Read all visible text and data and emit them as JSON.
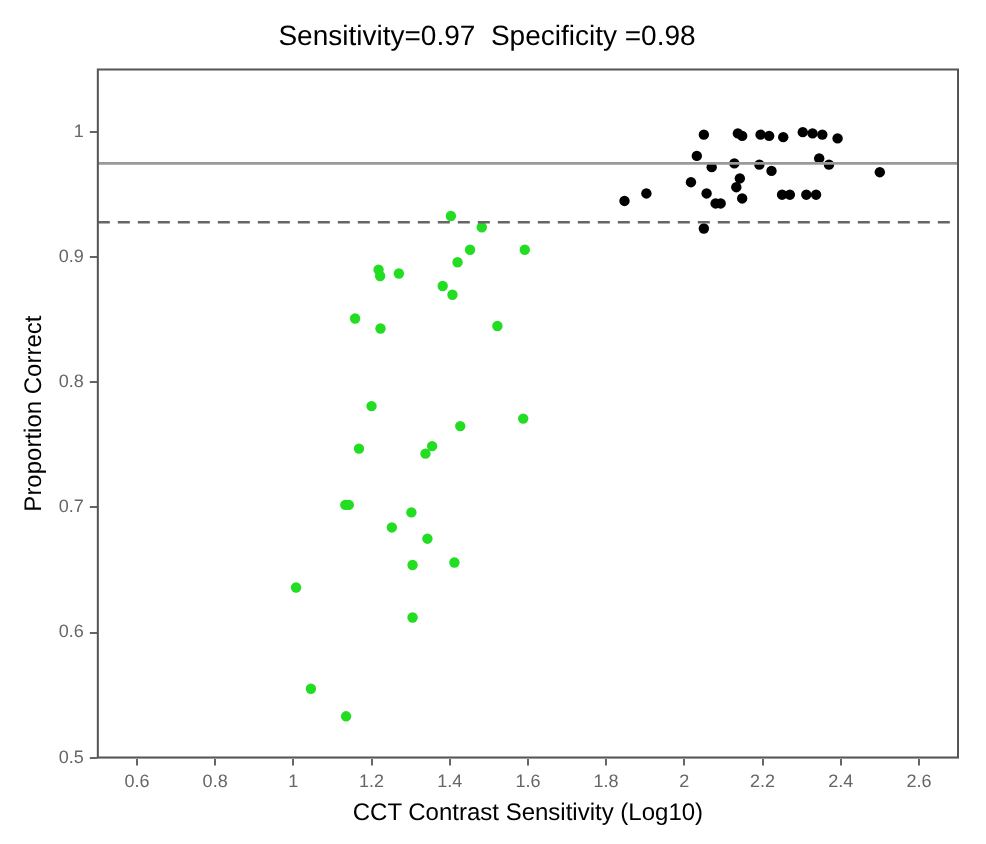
{
  "chart_data": {
    "type": "scatter",
    "title": "Sensitivity=0.97  Specificity =0.98",
    "xlabel": "CCT Contrast Sensitivity (Log10)",
    "ylabel": "Proportion Correct",
    "xlim": [
      0.5,
      2.7
    ],
    "xticks": [
      0.6,
      0.8,
      1,
      1.2,
      1.4,
      1.6,
      1.8,
      2,
      2.2,
      2.4,
      2.6
    ],
    "ylim": [
      0.5,
      1.05
    ],
    "yticks": [
      0.5,
      0.6,
      0.7,
      0.8,
      0.9,
      1
    ],
    "grid": false,
    "legend": false,
    "marker": "circle",
    "series": [
      {
        "color": "#22dd22",
        "x": [
          1.403,
          1.482,
          1.452,
          1.42,
          1.218,
          1.222,
          1.27,
          1.382,
          1.407,
          1.158,
          1.223,
          1.2,
          1.168,
          1.427,
          1.338,
          1.355,
          1.133,
          1.142,
          1.302,
          1.252,
          1.343,
          1.305,
          1.412,
          1.305,
          1.007,
          1.045,
          1.135,
          1.592,
          1.522,
          1.588
        ],
        "values": [
          0.933,
          0.924,
          0.906,
          0.896,
          0.89,
          0.885,
          0.887,
          0.877,
          0.87,
          0.851,
          0.843,
          0.781,
          0.747,
          0.765,
          0.743,
          0.749,
          0.702,
          0.702,
          0.696,
          0.684,
          0.675,
          0.654,
          0.656,
          0.612,
          0.636,
          0.555,
          0.533,
          0.906,
          0.845,
          0.771
        ]
      },
      {
        "color": "#000000",
        "x": [
          2.05,
          2.137,
          2.148,
          2.195,
          2.217,
          2.253,
          2.303,
          2.328,
          2.353,
          2.392,
          2.032,
          2.07,
          2.128,
          2.192,
          2.223,
          2.345,
          2.37,
          2.5,
          2.017,
          2.142,
          2.133,
          2.057,
          2.08,
          2.093,
          2.148,
          2.25,
          2.27,
          2.312,
          2.337,
          1.903,
          1.847,
          2.05
        ],
        "values": [
          0.998,
          0.999,
          0.997,
          0.998,
          0.997,
          0.996,
          1.0,
          0.999,
          0.998,
          0.995,
          0.981,
          0.972,
          0.975,
          0.974,
          0.969,
          0.979,
          0.974,
          0.968,
          0.96,
          0.963,
          0.956,
          0.951,
          0.943,
          0.943,
          0.947,
          0.95,
          0.95,
          0.95,
          0.95,
          0.951,
          0.945,
          0.923
        ]
      }
    ],
    "ref_lines": [
      {
        "axis": "y",
        "value": 0.975,
        "color": "#999999",
        "line_style": "solid"
      },
      {
        "axis": "y",
        "value": 0.928,
        "color": "#666666",
        "line_style": "dashed"
      }
    ]
  }
}
